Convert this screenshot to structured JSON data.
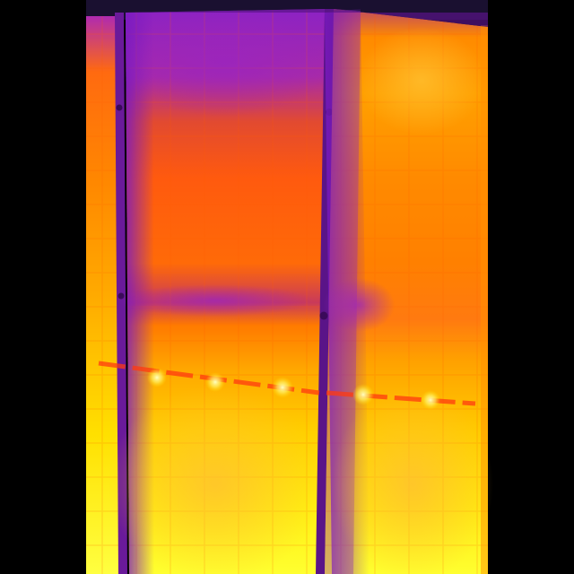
{
  "image": {
    "kind": "thermal-aerial-photo",
    "subject": "solar-panel-array",
    "palette": "ironbow",
    "colors": {
      "background": "#000000",
      "sky_cold": "#1a1030",
      "purple": "#8a1fc8",
      "magenta": "#b02ab0",
      "red_orange": "#ff4a10",
      "orange": "#ff7a00",
      "amber": "#ffb000",
      "yellow": "#ffe000",
      "pale_yellow": "#ffff40",
      "frame": "#6a1a9a",
      "hotspot": "#fff8a0"
    }
  }
}
